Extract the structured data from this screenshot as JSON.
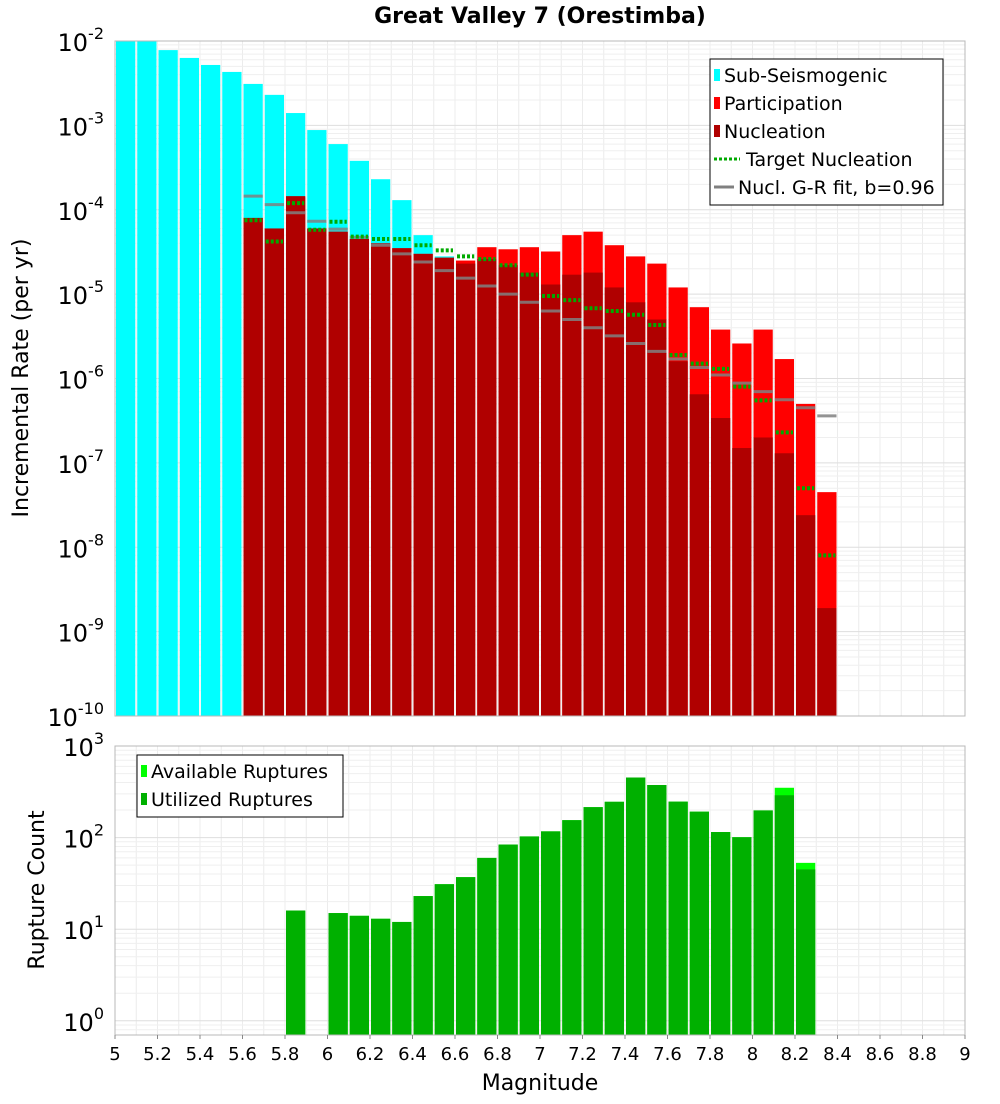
{
  "chart_data": [
    {
      "type": "bar",
      "title": "Great Valley 7 (Orestimba)",
      "ylabel": "Incremental Rate (per yr)",
      "xlabel": "",
      "xlim": [
        5,
        9
      ],
      "ylim": [
        1e-10,
        0.01
      ],
      "yscale": "log",
      "bin_width": 0.1,
      "grid": true,
      "legend_position": "top-right",
      "y_ticks": [
        {
          "base": "10",
          "exp": "-10",
          "value": 1e-10
        },
        {
          "base": "10",
          "exp": "-9",
          "value": 1e-09
        },
        {
          "base": "10",
          "exp": "-8",
          "value": 1e-08
        },
        {
          "base": "10",
          "exp": "-7",
          "value": 1e-07
        },
        {
          "base": "10",
          "exp": "-6",
          "value": 1e-06
        },
        {
          "base": "10",
          "exp": "-5",
          "value": 1e-05
        },
        {
          "base": "10",
          "exp": "-4",
          "value": 0.0001
        },
        {
          "base": "10",
          "exp": "-3",
          "value": 0.001
        },
        {
          "base": "10",
          "exp": "-2",
          "value": 0.01
        }
      ],
      "legend": [
        {
          "label": "Sub-Seismogenic",
          "color": "#00ffff",
          "style": "box"
        },
        {
          "label": "Participation",
          "color": "#ff0000",
          "style": "box"
        },
        {
          "label": "Nucleation",
          "color": "#b00000",
          "style": "box"
        },
        {
          "label": "Target Nucleation",
          "color": "#00aa00",
          "style": "dotted"
        },
        {
          "label": "Nucl. G-R fit, b=0.96",
          "color": "#808080",
          "style": "line"
        }
      ],
      "series": [
        {
          "name": "Sub-Seismogenic",
          "color": "#00ffff",
          "x": [
            5.05,
            5.15,
            5.25,
            5.35,
            5.45,
            5.55,
            5.65,
            5.75,
            5.85,
            5.95,
            6.05,
            6.15,
            6.25,
            6.35,
            6.45,
            6.55
          ],
          "values": [
            0.01,
            0.01,
            0.0078,
            0.0063,
            0.0052,
            0.0043,
            0.0031,
            0.0023,
            0.0014,
            0.00088,
            0.0006,
            0.00038,
            0.00023,
            0.00013,
            5e-05,
            2.8e-05
          ]
        },
        {
          "name": "Participation",
          "color": "#ff0000",
          "x": [
            5.65,
            5.75,
            5.85,
            5.95,
            6.05,
            6.15,
            6.25,
            6.35,
            6.45,
            6.55,
            6.65,
            6.75,
            6.85,
            6.95,
            7.05,
            7.15,
            7.25,
            7.35,
            7.45,
            7.55,
            7.65,
            7.75,
            7.85,
            7.95,
            8.05,
            8.15,
            8.25,
            8.35
          ],
          "values": [
            8e-05,
            6e-05,
            0.00014,
            6e-05,
            5.5e-05,
            4.5e-05,
            4e-05,
            3.5e-05,
            3e-05,
            2.7e-05,
            2.5e-05,
            3.6e-05,
            3.4e-05,
            3.6e-05,
            3.2e-05,
            5e-05,
            5.5e-05,
            3.8e-05,
            2.8e-05,
            2.3e-05,
            1.2e-05,
            7e-06,
            3.8e-06,
            2.6e-06,
            3.8e-06,
            1.7e-06,
            5e-07,
            4.5e-08
          ]
        },
        {
          "name": "Nucleation",
          "color": "#b00000",
          "x": [
            5.65,
            5.75,
            5.85,
            5.95,
            6.05,
            6.15,
            6.25,
            6.35,
            6.45,
            6.55,
            6.65,
            6.75,
            6.85,
            6.95,
            7.05,
            7.15,
            7.25,
            7.35,
            7.45,
            7.55,
            7.65,
            7.75,
            7.85,
            7.95,
            8.05,
            8.15,
            8.25,
            8.35
          ],
          "values": [
            8e-05,
            6e-05,
            0.000145,
            6e-05,
            5.5e-05,
            4.5e-05,
            4e-05,
            3.5e-05,
            3e-05,
            2.7e-05,
            2.3e-05,
            2.6e-05,
            2.2e-05,
            1.8e-05,
            1.3e-05,
            1.7e-05,
            1.8e-05,
            1.2e-05,
            8e-06,
            5e-06,
            1.6e-06,
            6.5e-07,
            3.4e-07,
            1.5e-07,
            2e-07,
            1.3e-07,
            2.4e-08,
            1.9e-09
          ]
        },
        {
          "name": "Target Nucleation",
          "color": "#00aa00",
          "x": [
            5.65,
            5.75,
            5.85,
            5.95,
            6.05,
            6.15,
            6.25,
            6.35,
            6.45,
            6.55,
            6.65,
            6.75,
            6.85,
            6.95,
            7.05,
            7.15,
            7.25,
            7.35,
            7.45,
            7.55,
            7.65,
            7.75,
            7.85,
            7.95,
            8.05,
            8.15,
            8.25,
            8.35
          ],
          "values": [
            7.5e-05,
            4.2e-05,
            0.00012,
            5.8e-05,
            7.2e-05,
            4.8e-05,
            4.5e-05,
            4.5e-05,
            3.8e-05,
            3.3e-05,
            2.8e-05,
            2.6e-05,
            2.2e-05,
            1.7e-05,
            9.5e-06,
            8.5e-06,
            6.8e-06,
            6.3e-06,
            5.7e-06,
            4.3e-06,
            1.9e-06,
            1.5e-06,
            1.3e-06,
            8e-07,
            5.5e-07,
            2.3e-07,
            5e-08,
            8e-09
          ]
        },
        {
          "name": "Nucl. G-R fit, b=0.96",
          "color": "#808080",
          "x": [
            5.65,
            5.75,
            5.85,
            5.95,
            6.05,
            6.15,
            6.25,
            6.35,
            6.45,
            6.55,
            6.65,
            6.75,
            6.85,
            6.95,
            7.05,
            7.15,
            7.25,
            7.35,
            7.45,
            7.55,
            7.65,
            7.75,
            7.85,
            7.95,
            8.05,
            8.15,
            8.25,
            8.35
          ],
          "values": [
            0.000145,
            0.000115,
            9.2e-05,
            7.3e-05,
            5.9e-05,
            4.7e-05,
            3.8e-05,
            3e-05,
            2.4e-05,
            1.9e-05,
            1.55e-05,
            1.25e-05,
            1e-05,
            8e-06,
            6.3e-06,
            5e-06,
            4e-06,
            3.2e-06,
            2.6e-06,
            2.1e-06,
            1.7e-06,
            1.35e-06,
            1.1e-06,
            8.8e-07,
            7e-07,
            5.6e-07,
            4.5e-07,
            3.6e-07
          ]
        }
      ]
    },
    {
      "type": "bar",
      "title": "",
      "xlabel": "Magnitude",
      "ylabel": "Rupture Count",
      "xlim": [
        5,
        9
      ],
      "ylim": [
        0.7,
        1000
      ],
      "yscale": "log",
      "bin_width": 0.1,
      "grid": true,
      "legend_position": "top-left",
      "x_ticks": [
        "5",
        "5.2",
        "5.4",
        "5.6",
        "5.8",
        "6",
        "6.2",
        "6.4",
        "6.6",
        "6.8",
        "7",
        "7.2",
        "7.4",
        "7.6",
        "7.8",
        "8",
        "8.2",
        "8.4",
        "8.6",
        "8.8",
        "9"
      ],
      "y_ticks": [
        {
          "base": "10",
          "exp": "0",
          "value": 1
        },
        {
          "base": "10",
          "exp": "1",
          "value": 10
        },
        {
          "base": "10",
          "exp": "2",
          "value": 100
        },
        {
          "base": "10",
          "exp": "3",
          "value": 1000
        }
      ],
      "legend": [
        {
          "label": "Available Ruptures",
          "color": "#00ff00",
          "style": "box"
        },
        {
          "label": "Utilized Ruptures",
          "color": "#00b000",
          "style": "box"
        }
      ],
      "series": [
        {
          "name": "Available Ruptures",
          "color": "#00ff00",
          "x": [
            5.85,
            6.05,
            6.15,
            6.25,
            6.35,
            6.45,
            6.55,
            6.65,
            6.75,
            6.85,
            6.95,
            7.05,
            7.15,
            7.25,
            7.35,
            7.45,
            7.55,
            7.65,
            7.75,
            7.85,
            7.95,
            8.05,
            8.15,
            8.25
          ],
          "values": [
            16,
            15,
            14,
            13,
            12,
            23,
            31,
            37,
            60,
            84,
            103,
            117,
            155,
            215,
            246,
            453,
            375,
            247,
            192,
            115,
            101,
            198,
            350,
            53
          ]
        },
        {
          "name": "Utilized Ruptures",
          "color": "#00b000",
          "x": [
            5.85,
            6.05,
            6.15,
            6.25,
            6.35,
            6.45,
            6.55,
            6.65,
            6.75,
            6.85,
            6.95,
            7.05,
            7.15,
            7.25,
            7.35,
            7.45,
            7.55,
            7.65,
            7.75,
            7.85,
            7.95,
            8.05,
            8.15,
            8.25
          ],
          "values": [
            16,
            15,
            14,
            13,
            12,
            23,
            31,
            37,
            60,
            84,
            103,
            117,
            155,
            215,
            246,
            453,
            375,
            247,
            192,
            115,
            101,
            198,
            290,
            45
          ]
        }
      ]
    }
  ]
}
